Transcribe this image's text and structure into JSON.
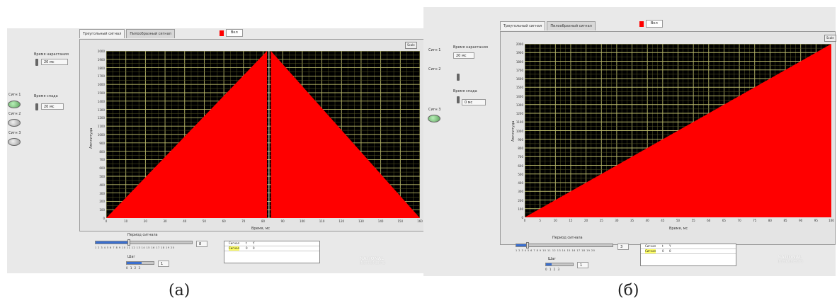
{
  "captions": {
    "a": "(а)",
    "b": "(б)"
  },
  "panel_a": {
    "tabs": [
      "Треугольный сигнал",
      "Пилообразный сигнал"
    ],
    "legend_button": "Вкл",
    "scale_button": "Scale",
    "controls": [
      {
        "label": "Время нарастания",
        "value": "20 мс"
      },
      {
        "label": "Время спада",
        "value": "20 мс"
      }
    ],
    "leds": [
      "Сигн 1",
      "Сигн 2",
      "Сигн 3"
    ],
    "led_states": [
      "on",
      "off",
      "off"
    ],
    "y_axis_title": "Амплитуда",
    "x_axis_title": "Время, мс",
    "y_ticks": [
      "2000",
      "1900",
      "1800",
      "1700",
      "1600",
      "1500",
      "1400",
      "1300",
      "1200",
      "1100",
      "1000",
      "900",
      "800",
      "700",
      "600",
      "500",
      "400",
      "300",
      "200",
      "100",
      "0"
    ],
    "x_ticks": [
      "0",
      "10",
      "20",
      "30",
      "40",
      "50",
      "60",
      "70",
      "80",
      "90",
      "100",
      "110",
      "120",
      "130",
      "140",
      "150",
      "160"
    ],
    "slider_title": "Период сигнала",
    "slider_scale": "1 2 3 4 5 6 7 8 9 10 11 12 13 14 15 16 17 18 19 20",
    "slider_value": "8",
    "slider_fraction": 0.35,
    "slider2_title": "Шаг",
    "slider2_scale": "0  1  2  3",
    "slider2_value": "1",
    "slider2_fraction": 0.55,
    "table_headers": [
      "Сигнал",
      "t",
      "Y"
    ],
    "table_row": [
      "Сигнал",
      "0",
      "0"
    ],
    "logo_line1": "NATIONAL",
    "logo_line2": "INSTRUMENTS"
  },
  "panel_b": {
    "tabs": [
      "Треугольный сигнал",
      "Пилообразный сигнал"
    ],
    "legend_button": "Вкл",
    "scale_button": "Scale",
    "controls": [
      {
        "label": "Время нарастания",
        "value": "20 мс"
      },
      {
        "label": "Время спада",
        "value": "0 мс"
      }
    ],
    "leds": [
      "Сигн 1",
      "Сигн 2",
      "Сигн 3"
    ],
    "led_states": [
      "off",
      "off",
      "on"
    ],
    "y_axis_title": "Амплитуда",
    "x_axis_title": "Время, мс",
    "y_ticks": [
      "2000",
      "1900",
      "1800",
      "1700",
      "1600",
      "1500",
      "1400",
      "1300",
      "1200",
      "1100",
      "1000",
      "900",
      "800",
      "700",
      "600",
      "500",
      "400",
      "300",
      "200",
      "100",
      "0"
    ],
    "x_ticks": [
      "0",
      "5",
      "10",
      "15",
      "20",
      "25",
      "30",
      "35",
      "40",
      "45",
      "50",
      "55",
      "60",
      "65",
      "70",
      "75",
      "80",
      "85",
      "90",
      "95",
      "100"
    ],
    "slider_title": "Период сигнала",
    "slider_scale": "1 2 3 4 5 6 7 8 9 10 11 12 13 14 15 16 17 18 19 20",
    "slider_value": "3",
    "slider_fraction": 0.12,
    "slider2_title": "Шаг",
    "slider2_scale": "0  1  2  3",
    "slider2_value": "1",
    "slider2_fraction": 0.2,
    "table_headers": [
      "Сигнал",
      "t",
      "Y"
    ],
    "table_row": [
      "Сигнал",
      "0",
      "0"
    ],
    "logo_line1": "NATIONAL",
    "logo_line2": "INSTRUMENTS"
  },
  "chart_data": [
    {
      "type": "area",
      "x": [
        0,
        82,
        84,
        160
      ],
      "series": [
        {
          "values": [
            0,
            2000,
            2000,
            0
          ]
        }
      ],
      "x_tick_range": [
        0,
        160
      ],
      "ylim": [
        0,
        2000
      ],
      "grid": true,
      "color": "#ff0000",
      "gap_at_x": 83
    },
    {
      "type": "area",
      "x": [
        0,
        100
      ],
      "series": [
        {
          "values": [
            0,
            2000
          ]
        }
      ],
      "x_tick_range": [
        0,
        100
      ],
      "ylim": [
        0,
        2000
      ],
      "grid": true,
      "color": "#ff0000"
    }
  ]
}
